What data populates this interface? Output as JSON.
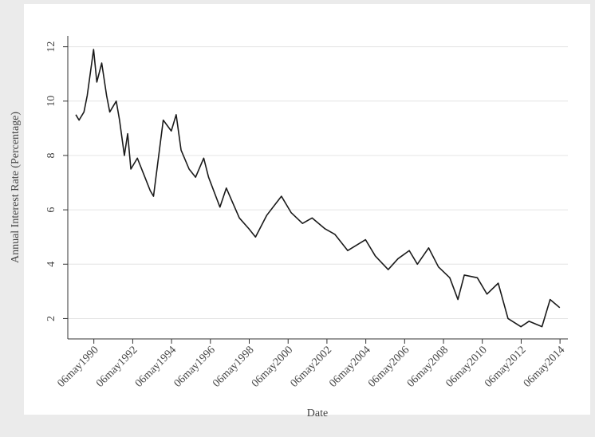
{
  "chart_data": {
    "type": "line",
    "y_label": "Annual Interest Rate (Percentage)",
    "x_label": "Date",
    "x": [
      "1989-06",
      "1989-08",
      "1989-11",
      "1990-01",
      "1990-05",
      "1990-07",
      "1990-10",
      "1991-01",
      "1991-03",
      "1991-07",
      "1991-09",
      "1991-12",
      "1992-02",
      "1992-04",
      "1992-08",
      "1992-12",
      "1993-04",
      "1993-06",
      "1993-12",
      "1994-05",
      "1994-08",
      "1994-11",
      "1995-04",
      "1995-08",
      "1996-01",
      "1996-04",
      "1996-11",
      "1997-03",
      "1997-11",
      "1998-05",
      "1998-09",
      "1999-04",
      "2000-01",
      "2000-07",
      "2001-02",
      "2001-08",
      "2002-04",
      "2002-10",
      "2003-06",
      "2004-05",
      "2004-11",
      "2005-07",
      "2006-01",
      "2006-08",
      "2007-01",
      "2007-08",
      "2008-02",
      "2008-09",
      "2009-02",
      "2009-06",
      "2010-02",
      "2010-08",
      "2011-03",
      "2011-09",
      "2012-05",
      "2012-10",
      "2013-06",
      "2013-11",
      "2014-05"
    ],
    "values": [
      9.5,
      9.3,
      9.6,
      10.2,
      11.9,
      10.7,
      11.4,
      10.2,
      9.6,
      10.0,
      9.3,
      8.0,
      8.8,
      7.5,
      7.9,
      7.3,
      6.7,
      6.5,
      9.3,
      8.9,
      9.5,
      8.2,
      7.5,
      7.2,
      7.9,
      7.2,
      6.1,
      6.8,
      5.7,
      5.3,
      5.0,
      5.8,
      6.5,
      5.9,
      5.5,
      5.7,
      5.3,
      5.1,
      4.5,
      4.9,
      4.3,
      3.8,
      4.2,
      4.5,
      4.0,
      4.6,
      3.9,
      3.5,
      2.7,
      3.6,
      3.5,
      2.9,
      3.3,
      2.0,
      1.7,
      1.9,
      1.7,
      2.7,
      2.4
    ],
    "color": "#1a1a1a",
    "xlim": [
      "1989-01",
      "2014-10"
    ],
    "xticks": [
      {
        "value": "1990-05-06",
        "label": "06may1990"
      },
      {
        "value": "1992-05-06",
        "label": "06may1992"
      },
      {
        "value": "1994-05-06",
        "label": "06may1994"
      },
      {
        "value": "1996-05-06",
        "label": "06may1996"
      },
      {
        "value": "1998-05-06",
        "label": "06may1998"
      },
      {
        "value": "2000-05-06",
        "label": "06may2000"
      },
      {
        "value": "2002-05-06",
        "label": "06may2002"
      },
      {
        "value": "2004-05-06",
        "label": "06may2004"
      },
      {
        "value": "2006-05-06",
        "label": "06may2006"
      },
      {
        "value": "2008-05-06",
        "label": "06may2008"
      },
      {
        "value": "2010-05-06",
        "label": "06may2010"
      },
      {
        "value": "2012-05-06",
        "label": "06may2012"
      },
      {
        "value": "2014-05-06",
        "label": "06may2014"
      }
    ],
    "ylim": [
      1.25,
      12.4
    ],
    "yticks": [
      2,
      4,
      6,
      8,
      10,
      12
    ],
    "grid": true
  }
}
